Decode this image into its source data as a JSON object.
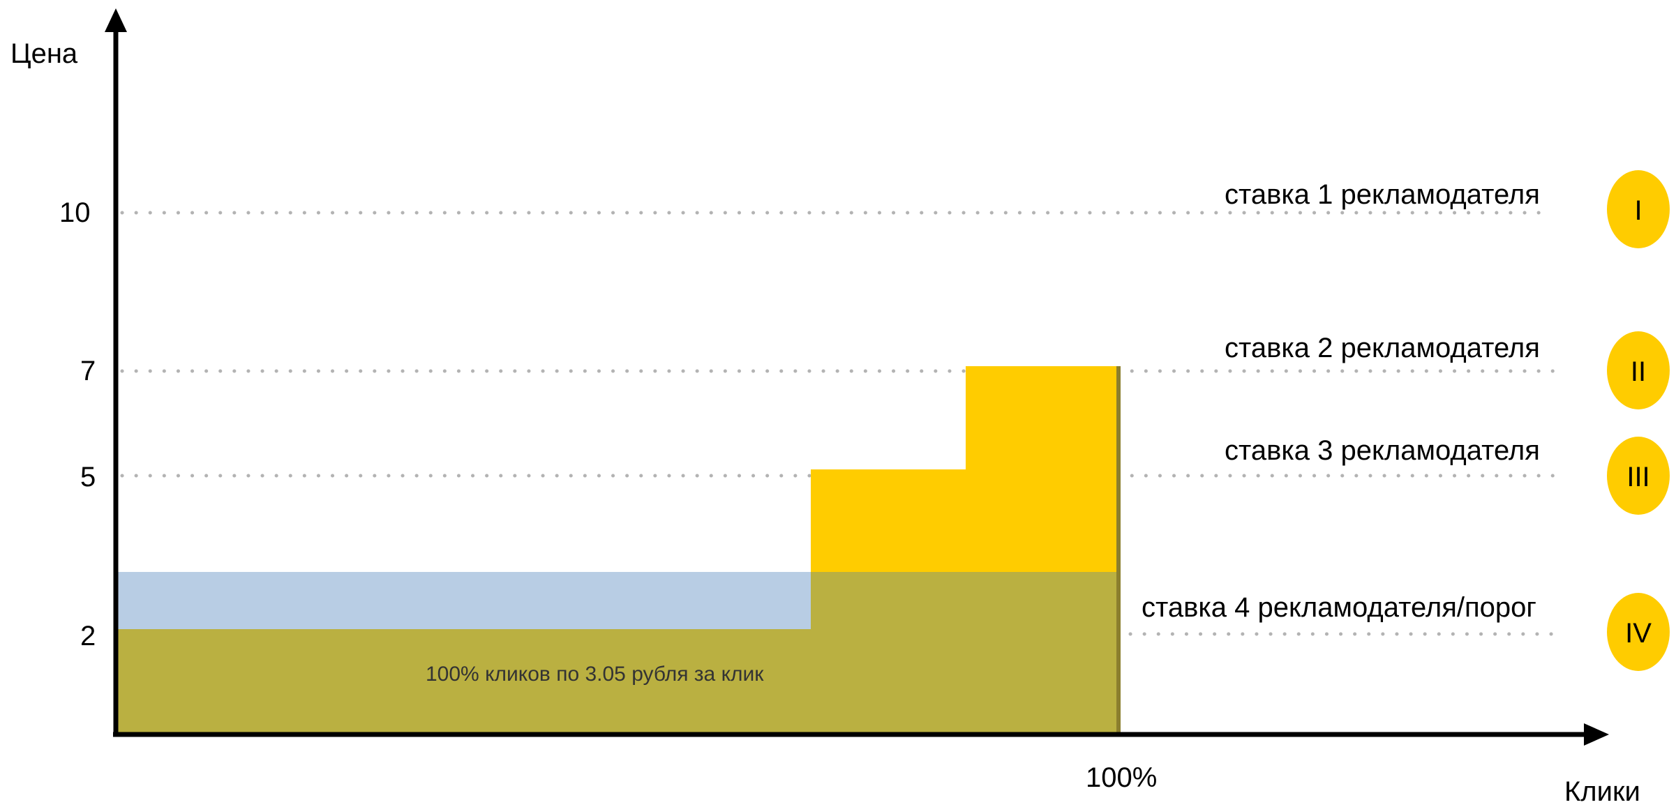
{
  "axes": {
    "y_label": "Цена",
    "x_label": "Клики",
    "y_ticks": [
      {
        "value": 10,
        "label": "10"
      },
      {
        "value": 7,
        "label": "7"
      },
      {
        "value": 5,
        "label": "5"
      },
      {
        "value": 2,
        "label": "2"
      }
    ],
    "x_tick": {
      "value": 100,
      "label": "100%"
    }
  },
  "bids": [
    {
      "label": "ставка 1 рекламодателя",
      "numeral": "I",
      "value": 10
    },
    {
      "label": "ставка 2 рекламодателя",
      "numeral": "II",
      "value": 7
    },
    {
      "label": "ставка 3 рекламодателя",
      "numeral": "III",
      "value": 5
    },
    {
      "label": "ставка 4 рекламодателя/порог",
      "numeral": "IV",
      "value": 2
    }
  ],
  "area_note": "100% кликов по 3.05 рубля за клик",
  "colors": {
    "yellow": "#FFCC00",
    "blue": "#B8CDE4",
    "olive": "#BAB041",
    "edge": "#8B7E2E",
    "dots": "#B3B3B3"
  }
}
